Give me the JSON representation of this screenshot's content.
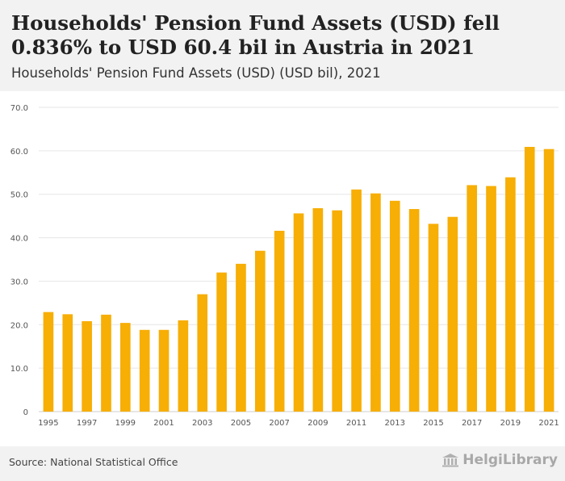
{
  "header": {
    "title": "Households' Pension Fund Assets (USD) fell 0.836% to USD 60.4 bil in Austria in 2021",
    "subtitle": "Households' Pension Fund Assets (USD) (USD bil), 2021"
  },
  "footer": {
    "source": "Source: National Statistical Office",
    "brand": "HelgiLibrary",
    "brand_icon": "library-building-icon"
  },
  "colors": {
    "bar": "#f7ae05",
    "grid": "#e6e6e6",
    "axis_text": "#555555"
  },
  "chart_data": {
    "type": "bar",
    "title": "Households' Pension Fund Assets (USD) (USD bil), 2021",
    "xlabel": "",
    "ylabel": "",
    "ylim": [
      0,
      70
    ],
    "yticks": [
      {
        "value": 0,
        "label": "0"
      },
      {
        "value": 10,
        "label": "10.0"
      },
      {
        "value": 20,
        "label": "20.0"
      },
      {
        "value": 30,
        "label": "30.0"
      },
      {
        "value": 40,
        "label": "40.0"
      },
      {
        "value": 50,
        "label": "50.0"
      },
      {
        "value": 60,
        "label": "60.0"
      },
      {
        "value": 70,
        "label": "70.0"
      }
    ],
    "categories": [
      "1995",
      "1996",
      "1997",
      "1998",
      "1999",
      "2000",
      "2001",
      "2002",
      "2003",
      "2004",
      "2005",
      "2006",
      "2007",
      "2008",
      "2009",
      "2010",
      "2011",
      "2012",
      "2013",
      "2014",
      "2015",
      "2016",
      "2017",
      "2018",
      "2019",
      "2020",
      "2021"
    ],
    "xtick_labels": [
      "1995",
      "",
      "1997",
      "",
      "1999",
      "",
      "2001",
      "",
      "2003",
      "",
      "2005",
      "",
      "2007",
      "",
      "2009",
      "",
      "2011",
      "",
      "2013",
      "",
      "2015",
      "",
      "2017",
      "",
      "2019",
      "",
      "2021"
    ],
    "values": [
      22.9,
      22.4,
      20.8,
      22.3,
      20.4,
      18.8,
      18.8,
      21.0,
      27.0,
      32.0,
      34.0,
      37.0,
      41.6,
      45.6,
      46.8,
      46.3,
      51.1,
      50.2,
      48.5,
      46.6,
      43.2,
      44.8,
      52.1,
      51.9,
      53.9,
      60.9,
      60.4
    ]
  }
}
